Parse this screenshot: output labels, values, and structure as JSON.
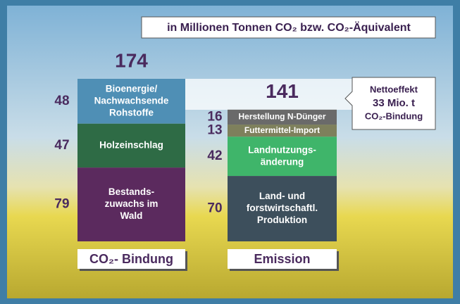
{
  "chart_data": {
    "type": "stacked_bar",
    "title": "in Millionen Tonnen CO₂ bzw. CO₂-Äquivalent",
    "annotation": [
      "Nettoeffekt",
      "33 Mio. t",
      "CO₂-Bindung"
    ],
    "stacks": [
      {
        "name": "CO₂- Bindung",
        "total": 174,
        "segments": [
          {
            "lines": [
              "Bioenergie/",
              "Nachwachsende",
              "Rohstoffe"
            ],
            "value": 48,
            "color": "#4f8fb5"
          },
          {
            "lines": [
              "Holzeinschlag"
            ],
            "value": 47,
            "color": "#2e6b45"
          },
          {
            "lines": [
              "Bestands-",
              "zuwachs im",
              "Wald"
            ],
            "value": 79,
            "color": "#5b2a5e"
          }
        ]
      },
      {
        "name": "Emission",
        "total": 141,
        "segments": [
          {
            "lines": [
              "Herstellung N-Dünger"
            ],
            "value": 16,
            "color": "#6a6a6a"
          },
          {
            "lines": [
              "Futtermittel-Import"
            ],
            "value": 13,
            "color": "#7e805c"
          },
          {
            "lines": [
              "Landnutzungs-",
              "änderung"
            ],
            "value": 42,
            "color": "#3fb56a"
          },
          {
            "lines": [
              "Land- und",
              "forstwirtschaftl.",
              "Produktion"
            ],
            "value": 70,
            "color": "#3d4f5c"
          }
        ]
      }
    ]
  }
}
